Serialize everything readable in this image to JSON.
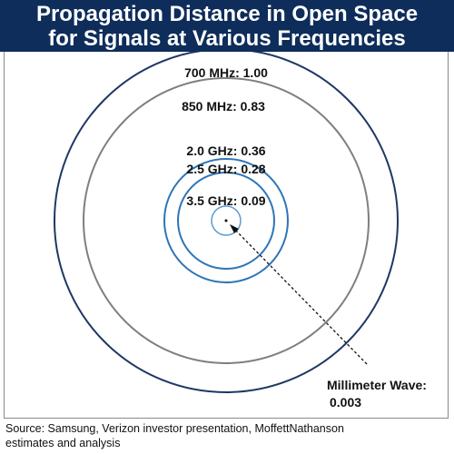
{
  "header": {
    "title_line1": "Propagation Distance in Open Space",
    "title_line2": "for Signals at Various Frequencies"
  },
  "diagram": {
    "labels": {
      "f700": "700 MHz: 1.00",
      "f850": "850 MHz: 0.83",
      "f2000": "2.0 GHz: 0.36",
      "f2500": "2.5 GHz: 0.28",
      "f3500": "3.5 GHz: 0.09",
      "mmwave_line1": "Millimeter Wave:",
      "mmwave_line2": "0.003"
    },
    "colors": {
      "outer_ring": "#1f3864",
      "gray_ring": "#7f7f7f",
      "blue_ring": "#2e75b6",
      "light_blue_ring": "#5b9bd5"
    }
  },
  "footer": {
    "source_line1": "Source: Samsung, Verizon investor presentation, MoffettNathanson",
    "source_line2": "estimates and analysis"
  }
}
